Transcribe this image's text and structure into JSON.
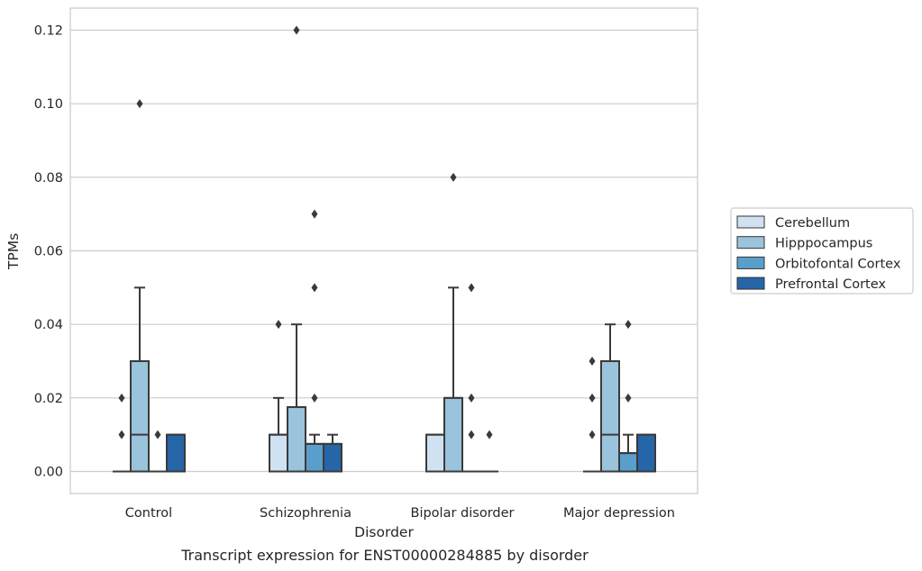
{
  "chart_data": {
    "type": "box",
    "xlabel": "Disorder",
    "ylabel": "TPMs",
    "caption": "Transcript expression for ENST00000284885 by disorder",
    "ylim": [
      -0.006,
      0.126
    ],
    "yticks": [
      0.0,
      0.02,
      0.04,
      0.06,
      0.08,
      0.1,
      0.12
    ],
    "ytick_labels": [
      "0.00",
      "0.02",
      "0.04",
      "0.06",
      "0.08",
      "0.10",
      "0.12"
    ],
    "grid": "horizontal",
    "legend_position": "right",
    "categories": [
      "Control",
      "Schizophrenia",
      "Bipolar disorder",
      "Major depression"
    ],
    "series": [
      {
        "name": "Cerebellum",
        "color": "#d0e1f2",
        "boxes": [
          {
            "category": "Control",
            "q1": 0,
            "median": 0,
            "q3": 0,
            "whisker_low": 0,
            "whisker_high": 0,
            "outliers": [
              0.01,
              0.02
            ]
          },
          {
            "category": "Schizophrenia",
            "q1": 0,
            "median": 0.01,
            "q3": 0.01,
            "whisker_low": 0,
            "whisker_high": 0.02,
            "outliers": [
              0.04
            ]
          },
          {
            "category": "Bipolar disorder",
            "q1": 0,
            "median": 0.01,
            "q3": 0.01,
            "whisker_low": 0,
            "whisker_high": 0.01,
            "outliers": []
          },
          {
            "category": "Major depression",
            "q1": 0,
            "median": 0,
            "q3": 0,
            "whisker_low": 0,
            "whisker_high": 0,
            "outliers": [
              0.01,
              0.02,
              0.03
            ]
          }
        ]
      },
      {
        "name": "Hipppocampus",
        "color": "#9ac3dc",
        "boxes": [
          {
            "category": "Control",
            "q1": 0,
            "median": 0.01,
            "q3": 0.03,
            "whisker_low": 0,
            "whisker_high": 0.05,
            "outliers": [
              0.1
            ]
          },
          {
            "category": "Schizophrenia",
            "q1": 0,
            "median": 0.0175,
            "q3": 0.0175,
            "whisker_low": 0,
            "whisker_high": 0.04,
            "outliers": [
              0.12
            ]
          },
          {
            "category": "Bipolar disorder",
            "q1": 0,
            "median": 0.02,
            "q3": 0.02,
            "whisker_low": 0,
            "whisker_high": 0.05,
            "outliers": [
              0.08
            ]
          },
          {
            "category": "Major depression",
            "q1": 0,
            "median": 0.01,
            "q3": 0.03,
            "whisker_low": 0,
            "whisker_high": 0.04,
            "outliers": []
          }
        ]
      },
      {
        "name": "Orbitofontal Cortex",
        "color": "#5a9fcc",
        "boxes": [
          {
            "category": "Control",
            "q1": 0,
            "median": 0,
            "q3": 0,
            "whisker_low": 0,
            "whisker_high": 0,
            "outliers": [
              0.01
            ]
          },
          {
            "category": "Schizophrenia",
            "q1": 0,
            "median": 0.0075,
            "q3": 0.0075,
            "whisker_low": 0,
            "whisker_high": 0.01,
            "outliers": [
              0.02,
              0.05,
              0.07
            ]
          },
          {
            "category": "Bipolar disorder",
            "q1": 0,
            "median": 0,
            "q3": 0,
            "whisker_low": 0,
            "whisker_high": 0,
            "outliers": [
              0.01,
              0.02,
              0.05
            ]
          },
          {
            "category": "Major depression",
            "q1": 0,
            "median": 0.005,
            "q3": 0.005,
            "whisker_low": 0,
            "whisker_high": 0.01,
            "outliers": [
              0.02,
              0.04
            ]
          }
        ]
      },
      {
        "name": "Prefrontal Cortex",
        "color": "#2665a8",
        "boxes": [
          {
            "category": "Control",
            "q1": 0,
            "median": 0.01,
            "q3": 0.01,
            "whisker_low": 0,
            "whisker_high": 0.01,
            "outliers": []
          },
          {
            "category": "Schizophrenia",
            "q1": 0,
            "median": 0.0075,
            "q3": 0.0075,
            "whisker_low": 0,
            "whisker_high": 0.01,
            "outliers": []
          },
          {
            "category": "Bipolar disorder",
            "q1": 0,
            "median": 0,
            "q3": 0,
            "whisker_low": 0,
            "whisker_high": 0,
            "outliers": [
              0.01
            ]
          },
          {
            "category": "Major depression",
            "q1": 0,
            "median": 0.01,
            "q3": 0.01,
            "whisker_low": 0,
            "whisker_high": 0.01,
            "outliers": []
          }
        ]
      }
    ]
  }
}
